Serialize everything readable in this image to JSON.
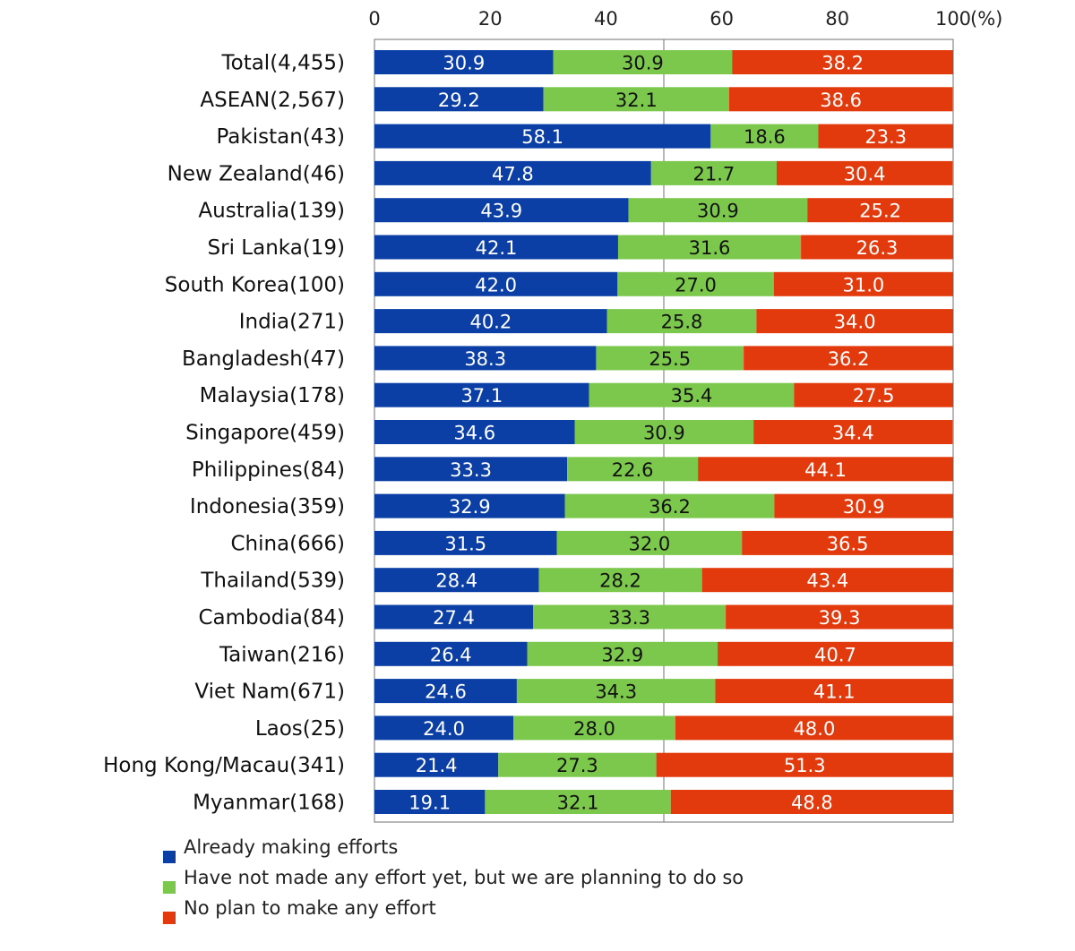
{
  "chart_data": {
    "type": "bar",
    "orientation": "horizontal",
    "stacked": true,
    "title": "",
    "xlabel": "",
    "ylabel": "",
    "xlim": [
      0,
      100
    ],
    "x_ticks": [
      0,
      20,
      40,
      60,
      80,
      100
    ],
    "x_tick_labels": [
      "0",
      "20",
      "40",
      "60",
      "80",
      "100"
    ],
    "unit_label": "(%)",
    "gridlines": "vertical line at 50",
    "legend_position": "bottom-left",
    "categories": [
      "Total(4,455)",
      "ASEAN(2,567)",
      "Pakistan(43)",
      "New Zealand(46)",
      "Australia(139)",
      "Sri Lanka(19)",
      "South Korea(100)",
      "India(271)",
      "Bangladesh(47)",
      "Malaysia(178)",
      "Singapore(459)",
      "Philippines(84)",
      "Indonesia(359)",
      "China(666)",
      "Thailand(539)",
      "Cambodia(84)",
      "Taiwan(216)",
      "Viet Nam(671)",
      "Laos(25)",
      "Hong Kong/Macau(341)",
      "Myanmar(168)"
    ],
    "series": [
      {
        "name": "Already making efforts",
        "color": "#0b3fa5",
        "label_color": "#ffffff",
        "values": [
          30.9,
          29.2,
          58.1,
          47.8,
          43.9,
          42.1,
          42.0,
          40.2,
          38.3,
          37.1,
          34.6,
          33.3,
          32.9,
          31.5,
          28.4,
          27.4,
          26.4,
          24.6,
          24.0,
          21.4,
          19.1
        ]
      },
      {
        "name": "Have not made any effort yet, but we are planning to do so",
        "color": "#7cc84d",
        "label_color": "#111111",
        "values": [
          30.9,
          32.1,
          18.6,
          21.7,
          30.9,
          31.6,
          27.0,
          25.8,
          25.5,
          35.4,
          30.9,
          22.6,
          36.2,
          32.0,
          28.2,
          33.3,
          32.9,
          34.3,
          28.0,
          27.3,
          32.1
        ]
      },
      {
        "name": "No plan to make any effort",
        "color": "#e23a0c",
        "label_color": "#ffffff",
        "values": [
          38.2,
          38.6,
          23.3,
          30.4,
          25.2,
          26.3,
          31.0,
          34.0,
          36.2,
          27.5,
          34.4,
          44.1,
          30.9,
          36.5,
          43.4,
          39.3,
          40.7,
          41.1,
          48.0,
          51.3,
          48.8
        ]
      }
    ]
  }
}
